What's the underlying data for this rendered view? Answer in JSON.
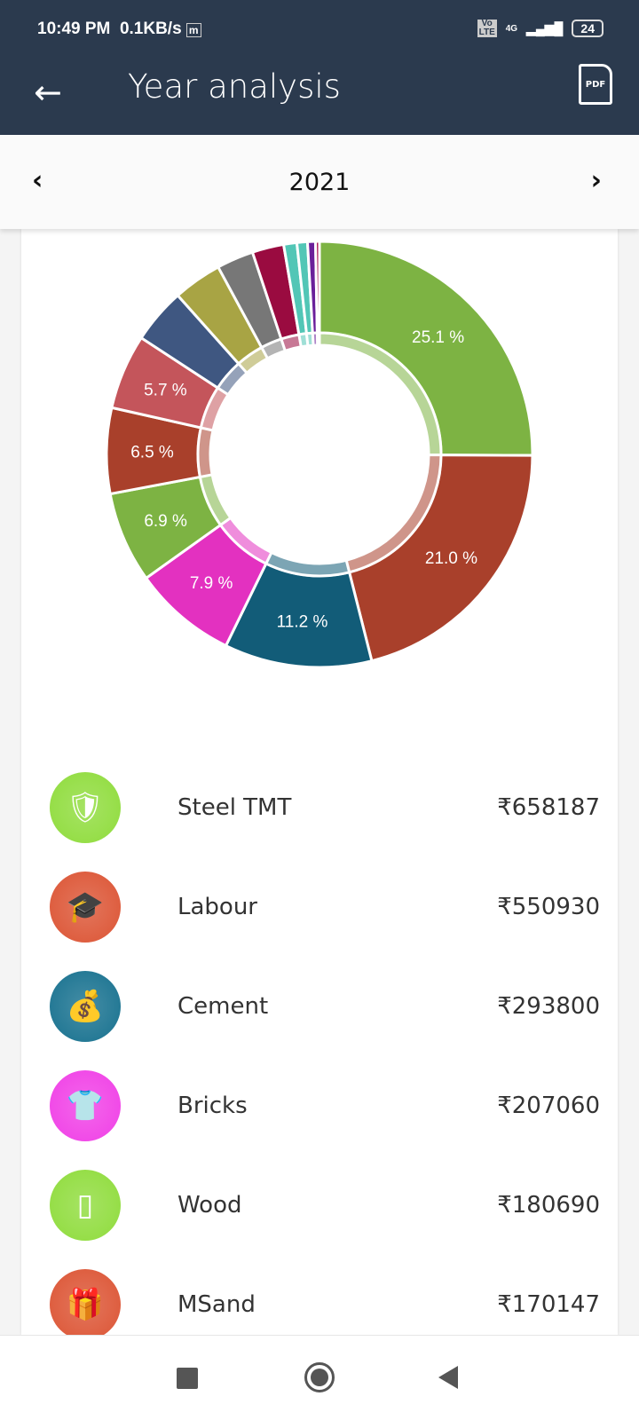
{
  "status": {
    "time": "10:49 PM",
    "speed": "0.1KB/s",
    "app_icon": "m",
    "volte": "Vo LTE",
    "network": "4G",
    "battery": "24"
  },
  "header": {
    "title": "Year analysis",
    "back_icon": "arrow-left-icon",
    "pdf_label": "PDF"
  },
  "year": {
    "value": "2021",
    "prev_icon": "chevron-left-icon",
    "next_icon": "chevron-right-icon"
  },
  "chart_data": {
    "type": "pie",
    "donut": true,
    "slices": [
      {
        "value": 25.1,
        "label": "25.1 %",
        "color": "#7db343"
      },
      {
        "value": 21.0,
        "label": "21.0 %",
        "color": "#a9402b"
      },
      {
        "value": 11.2,
        "label": "11.2 %",
        "color": "#125c78"
      },
      {
        "value": 7.9,
        "label": "7.9 %",
        "color": "#e331c0"
      },
      {
        "value": 6.9,
        "label": "6.9 %",
        "color": "#7db343"
      },
      {
        "value": 6.5,
        "label": "6.5 %",
        "color": "#a9402b"
      },
      {
        "value": 5.7,
        "label": "5.7 %",
        "color": "#c4555b"
      },
      {
        "value": 4.2,
        "label": "",
        "color": "#3f5781"
      },
      {
        "value": 3.7,
        "label": "",
        "color": "#a8a444"
      },
      {
        "value": 2.8,
        "label": "",
        "color": "#777777"
      },
      {
        "value": 2.4,
        "label": "",
        "color": "#9a0b40"
      },
      {
        "value": 1.0,
        "label": "",
        "color": "#52c6b6"
      },
      {
        "value": 0.8,
        "label": "",
        "color": "#52c6b6"
      },
      {
        "value": 0.6,
        "label": "",
        "color": "#6b1f9a"
      },
      {
        "value": 0.3,
        "label": "",
        "color": "#b0185a"
      }
    ]
  },
  "items": [
    {
      "name": "Steel TMT",
      "amount": "₹658187",
      "icon": "shield-check-icon",
      "glyph": "🛡",
      "color": "#8fdc3c"
    },
    {
      "name": "Labour",
      "amount": "₹550930",
      "icon": "graduation-cap-icon",
      "glyph": "🎓",
      "color": "#dc5434"
    },
    {
      "name": "Cement",
      "amount": "₹293800",
      "icon": "money-bag-icon",
      "glyph": "💰",
      "color": "#17718f"
    },
    {
      "name": "Bricks",
      "amount": "₹207060",
      "icon": "tshirt-icon",
      "glyph": "👕",
      "color": "#f03fe6"
    },
    {
      "name": "Wood",
      "amount": "₹180690",
      "icon": "smartphone-icon",
      "glyph": "▯",
      "color": "#8fdc3c"
    },
    {
      "name": "MSand",
      "amount": "₹170147",
      "icon": "gift-icon",
      "glyph": "🎁",
      "color": "#dc5434"
    }
  ]
}
